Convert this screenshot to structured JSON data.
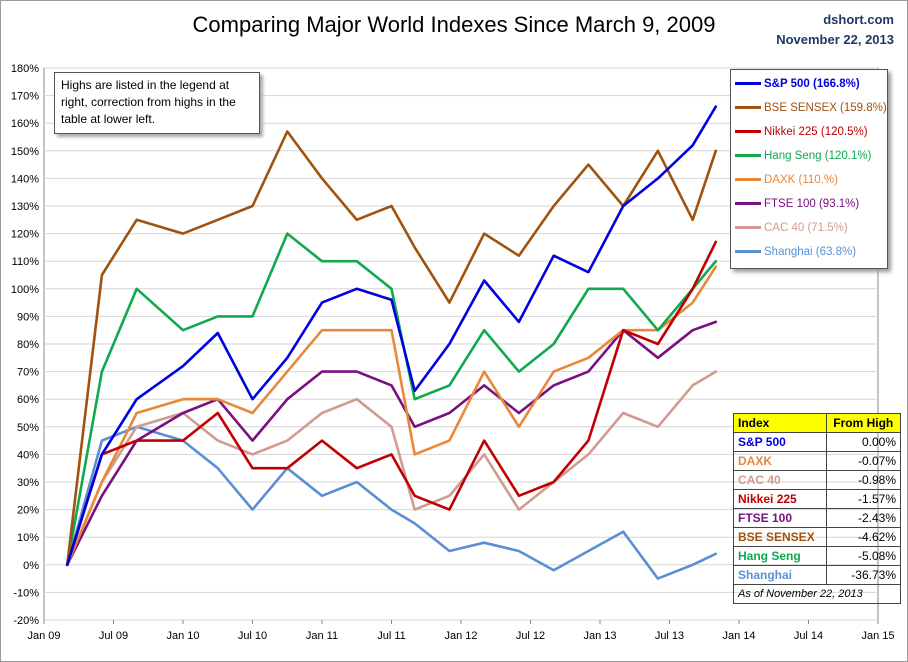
{
  "title": "Comparing Major World Indexes Since March 9, 2009",
  "source_line1": "dshort.com",
  "source_line2": "November 22, 2013",
  "note": "Highs are listed in the legend at right, correction from highs in the table at lower left.",
  "table": {
    "header_index": "Index",
    "header_from_high": "From High",
    "rows": [
      {
        "name": "S&P 500",
        "value": "0.00%",
        "color": "#0000e0"
      },
      {
        "name": "DAXK",
        "value": "-0.07%",
        "color": "#e8883a"
      },
      {
        "name": "CAC 40",
        "value": "-0.98%",
        "color": "#d29a90"
      },
      {
        "name": "Nikkei 225",
        "value": "-1.57%",
        "color": "#c00000"
      },
      {
        "name": "FTSE 100",
        "value": "-2.43%",
        "color": "#7a0f80"
      },
      {
        "name": "BSE SENSEX",
        "value": "-4.62%",
        "color": "#a0520e"
      },
      {
        "name": "Hang Seng",
        "value": "-5.08%",
        "color": "#10a850"
      },
      {
        "name": "Shanghai",
        "value": "-36.73%",
        "color": "#5a8fd6"
      }
    ],
    "footer": "As of November 22, 2013"
  },
  "chart_data": {
    "type": "line",
    "title": "Comparing Major World Indexes Since March 9, 2009",
    "xlabel": "",
    "ylabel": "",
    "x_ticks": [
      "Jan 09",
      "Jul 09",
      "Jan 10",
      "Jul 10",
      "Jan 11",
      "Jul 11",
      "Jan 12",
      "Jul 12",
      "Jan 13",
      "Jul 13",
      "Jan 14",
      "Jul 14",
      "Jan 15"
    ],
    "y_ticks": [
      "-20%",
      "-10%",
      "0%",
      "10%",
      "20%",
      "30%",
      "40%",
      "50%",
      "60%",
      "70%",
      "80%",
      "90%",
      "100%",
      "110%",
      "120%",
      "130%",
      "140%",
      "150%",
      "160%",
      "170%",
      "180%"
    ],
    "xlim": [
      "2009-01",
      "2015-01"
    ],
    "ylim": [
      -20,
      180
    ],
    "grid": true,
    "legend_position": "top-right",
    "series": [
      {
        "name": "S&P 500",
        "legend": "S&P 500 (166.8%)",
        "color": "#0000e0",
        "x": [
          "2009-03",
          "2009-06",
          "2009-09",
          "2010-01",
          "2010-04",
          "2010-07",
          "2010-10",
          "2011-01",
          "2011-04",
          "2011-07",
          "2011-09",
          "2011-12",
          "2012-03",
          "2012-06",
          "2012-09",
          "2012-12",
          "2013-03",
          "2013-06",
          "2013-09",
          "2013-11"
        ],
        "y": [
          0,
          40,
          60,
          72,
          84,
          60,
          75,
          95,
          100,
          96,
          63,
          80,
          103,
          88,
          112,
          106,
          130,
          140,
          152,
          166
        ]
      },
      {
        "name": "BSE SENSEX",
        "legend": "BSE SENSEX (159.8%)",
        "color": "#a0520e",
        "x": [
          "2009-03",
          "2009-06",
          "2009-09",
          "2010-01",
          "2010-04",
          "2010-07",
          "2010-10",
          "2011-01",
          "2011-04",
          "2011-07",
          "2011-09",
          "2011-12",
          "2012-03",
          "2012-06",
          "2012-09",
          "2012-12",
          "2013-03",
          "2013-06",
          "2013-09",
          "2013-11"
        ],
        "y": [
          0,
          105,
          125,
          120,
          125,
          130,
          157,
          140,
          125,
          130,
          115,
          95,
          120,
          112,
          130,
          145,
          130,
          150,
          125,
          150
        ]
      },
      {
        "name": "Nikkei 225",
        "legend": "Nikkei 225 (120.5%)",
        "color": "#c00000",
        "x": [
          "2009-03",
          "2009-06",
          "2009-09",
          "2010-01",
          "2010-04",
          "2010-07",
          "2010-10",
          "2011-01",
          "2011-04",
          "2011-07",
          "2011-09",
          "2011-12",
          "2012-03",
          "2012-06",
          "2012-09",
          "2012-12",
          "2013-03",
          "2013-06",
          "2013-09",
          "2013-11"
        ],
        "y": [
          0,
          40,
          45,
          45,
          55,
          35,
          35,
          45,
          35,
          40,
          25,
          20,
          45,
          25,
          30,
          45,
          85,
          80,
          100,
          117
        ]
      },
      {
        "name": "Hang Seng",
        "legend": "Hang Seng (120.1%)",
        "color": "#10a850",
        "x": [
          "2009-03",
          "2009-06",
          "2009-09",
          "2010-01",
          "2010-04",
          "2010-07",
          "2010-10",
          "2011-01",
          "2011-04",
          "2011-07",
          "2011-09",
          "2011-12",
          "2012-03",
          "2012-06",
          "2012-09",
          "2012-12",
          "2013-03",
          "2013-06",
          "2013-09",
          "2013-11"
        ],
        "y": [
          0,
          70,
          100,
          85,
          90,
          90,
          120,
          110,
          110,
          100,
          60,
          65,
          85,
          70,
          80,
          100,
          100,
          85,
          100,
          110
        ]
      },
      {
        "name": "DAXK",
        "legend": "DAXK (110.%)",
        "color": "#e8883a",
        "x": [
          "2009-03",
          "2009-06",
          "2009-09",
          "2010-01",
          "2010-04",
          "2010-07",
          "2010-10",
          "2011-01",
          "2011-04",
          "2011-07",
          "2011-09",
          "2011-12",
          "2012-03",
          "2012-06",
          "2012-09",
          "2012-12",
          "2013-03",
          "2013-06",
          "2013-09",
          "2013-11"
        ],
        "y": [
          0,
          30,
          55,
          60,
          60,
          55,
          70,
          85,
          85,
          85,
          40,
          45,
          70,
          50,
          70,
          75,
          85,
          85,
          95,
          108
        ]
      },
      {
        "name": "FTSE 100",
        "legend": "FTSE 100 (93.1%)",
        "color": "#7a0f80",
        "x": [
          "2009-03",
          "2009-06",
          "2009-09",
          "2010-01",
          "2010-04",
          "2010-07",
          "2010-10",
          "2011-01",
          "2011-04",
          "2011-07",
          "2011-09",
          "2011-12",
          "2012-03",
          "2012-06",
          "2012-09",
          "2012-12",
          "2013-03",
          "2013-06",
          "2013-09",
          "2013-11"
        ],
        "y": [
          0,
          25,
          45,
          55,
          60,
          45,
          60,
          70,
          70,
          65,
          50,
          55,
          65,
          55,
          65,
          70,
          85,
          75,
          85,
          88
        ]
      },
      {
        "name": "CAC 40",
        "legend": "CAC 40 (71.5%)",
        "color": "#d29a90",
        "x": [
          "2009-03",
          "2009-06",
          "2009-09",
          "2010-01",
          "2010-04",
          "2010-07",
          "2010-10",
          "2011-01",
          "2011-04",
          "2011-07",
          "2011-09",
          "2011-12",
          "2012-03",
          "2012-06",
          "2012-09",
          "2012-12",
          "2013-03",
          "2013-06",
          "2013-09",
          "2013-11"
        ],
        "y": [
          0,
          30,
          50,
          55,
          45,
          40,
          45,
          55,
          60,
          50,
          20,
          25,
          40,
          20,
          30,
          40,
          55,
          50,
          65,
          70
        ]
      },
      {
        "name": "Shanghai",
        "legend": "Shanghai (63.8%)",
        "color": "#5a8fd6",
        "x": [
          "2009-03",
          "2009-06",
          "2009-09",
          "2010-01",
          "2010-04",
          "2010-07",
          "2010-10",
          "2011-01",
          "2011-04",
          "2011-07",
          "2011-09",
          "2011-12",
          "2012-03",
          "2012-06",
          "2012-09",
          "2012-12",
          "2013-03",
          "2013-06",
          "2013-09",
          "2013-11"
        ],
        "y": [
          0,
          45,
          50,
          45,
          35,
          20,
          35,
          25,
          30,
          20,
          15,
          5,
          8,
          5,
          -2,
          5,
          12,
          -5,
          0,
          4
        ]
      }
    ]
  }
}
